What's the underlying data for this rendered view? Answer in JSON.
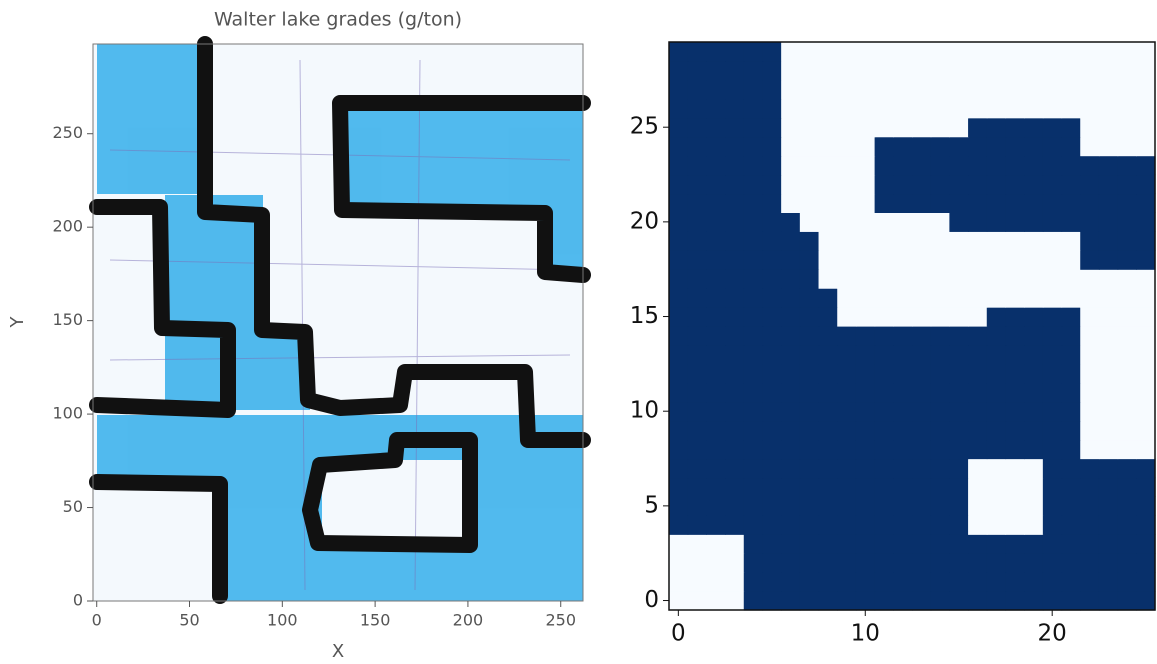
{
  "chart_data": [
    {
      "type": "map",
      "title": "Walter lake grades (g/ton)",
      "x_label": "X",
      "y_label": "Y",
      "xlim": [
        -2,
        262
      ],
      "ylim": [
        0,
        298
      ],
      "xticks": [
        0,
        50,
        100,
        150,
        200,
        250
      ],
      "yticks": [
        0,
        50,
        100,
        150,
        200,
        250
      ]
    },
    {
      "type": "heatmap",
      "colors": [
        "#f7fbff",
        "#08306b"
      ],
      "xlim": [
        -0.5,
        25.5
      ],
      "ylim": [
        -0.5,
        29.5
      ],
      "xticks": [
        0,
        10,
        20
      ],
      "yticks": [
        0,
        5,
        10,
        15,
        20,
        25
      ],
      "z": [
        [
          0,
          0,
          0,
          0,
          1,
          1,
          1,
          1,
          1,
          1,
          1,
          1,
          1,
          1,
          1,
          1,
          1,
          1,
          1,
          1,
          1,
          1,
          1,
          1,
          1,
          1
        ],
        [
          0,
          0,
          0,
          0,
          1,
          1,
          1,
          1,
          1,
          1,
          1,
          1,
          1,
          1,
          1,
          1,
          1,
          1,
          1,
          1,
          1,
          1,
          1,
          1,
          1,
          1
        ],
        [
          0,
          0,
          0,
          0,
          1,
          1,
          1,
          1,
          1,
          1,
          1,
          1,
          1,
          1,
          1,
          1,
          1,
          1,
          1,
          1,
          1,
          1,
          1,
          1,
          1,
          1
        ],
        [
          0,
          0,
          0,
          0,
          1,
          1,
          1,
          1,
          1,
          1,
          1,
          1,
          1,
          1,
          1,
          1,
          1,
          1,
          1,
          1,
          1,
          1,
          1,
          1,
          1,
          1
        ],
        [
          1,
          1,
          1,
          1,
          1,
          1,
          1,
          1,
          1,
          1,
          1,
          1,
          1,
          1,
          1,
          1,
          0,
          0,
          0,
          0,
          1,
          1,
          1,
          1,
          1,
          1
        ],
        [
          1,
          1,
          1,
          1,
          1,
          1,
          1,
          1,
          1,
          1,
          1,
          1,
          1,
          1,
          1,
          1,
          0,
          0,
          0,
          0,
          1,
          1,
          1,
          1,
          1,
          1
        ],
        [
          1,
          1,
          1,
          1,
          1,
          1,
          1,
          1,
          1,
          1,
          1,
          1,
          1,
          1,
          1,
          1,
          0,
          0,
          0,
          0,
          1,
          1,
          1,
          1,
          1,
          1
        ],
        [
          1,
          1,
          1,
          1,
          1,
          1,
          1,
          1,
          1,
          1,
          1,
          1,
          1,
          1,
          1,
          1,
          0,
          0,
          0,
          0,
          1,
          1,
          1,
          1,
          1,
          1
        ],
        [
          1,
          1,
          1,
          1,
          1,
          1,
          1,
          1,
          1,
          1,
          1,
          1,
          1,
          1,
          1,
          1,
          1,
          1,
          1,
          1,
          1,
          1,
          0,
          0,
          0,
          0
        ],
        [
          1,
          1,
          1,
          1,
          1,
          1,
          1,
          1,
          1,
          1,
          1,
          1,
          1,
          1,
          1,
          1,
          1,
          1,
          1,
          1,
          1,
          1,
          0,
          0,
          0,
          0
        ],
        [
          1,
          1,
          1,
          1,
          1,
          1,
          1,
          1,
          1,
          1,
          1,
          1,
          1,
          1,
          1,
          1,
          1,
          1,
          1,
          1,
          1,
          1,
          0,
          0,
          0,
          0
        ],
        [
          1,
          1,
          1,
          1,
          1,
          1,
          1,
          1,
          1,
          1,
          1,
          1,
          1,
          1,
          1,
          1,
          1,
          1,
          1,
          1,
          1,
          1,
          0,
          0,
          0,
          0
        ],
        [
          1,
          1,
          1,
          1,
          1,
          1,
          1,
          1,
          1,
          1,
          1,
          1,
          1,
          1,
          1,
          1,
          1,
          1,
          1,
          1,
          1,
          1,
          0,
          0,
          0,
          0
        ],
        [
          1,
          1,
          1,
          1,
          1,
          1,
          1,
          1,
          1,
          1,
          1,
          1,
          1,
          1,
          1,
          1,
          1,
          1,
          1,
          1,
          1,
          1,
          0,
          0,
          0,
          0
        ],
        [
          1,
          1,
          1,
          1,
          1,
          1,
          1,
          1,
          1,
          1,
          1,
          1,
          1,
          1,
          1,
          1,
          1,
          1,
          1,
          1,
          1,
          1,
          0,
          0,
          0,
          0
        ],
        [
          1,
          1,
          1,
          1,
          1,
          1,
          1,
          1,
          1,
          0,
          0,
          0,
          0,
          0,
          0,
          0,
          0,
          1,
          1,
          1,
          1,
          1,
          0,
          0,
          0,
          0
        ],
        [
          1,
          1,
          1,
          1,
          1,
          1,
          1,
          1,
          1,
          0,
          0,
          0,
          0,
          0,
          0,
          0,
          0,
          0,
          0,
          0,
          0,
          0,
          0,
          0,
          0,
          0
        ],
        [
          1,
          1,
          1,
          1,
          1,
          1,
          1,
          1,
          0,
          0,
          0,
          0,
          0,
          0,
          0,
          0,
          0,
          0,
          0,
          0,
          0,
          0,
          0,
          0,
          0,
          0
        ],
        [
          1,
          1,
          1,
          1,
          1,
          1,
          1,
          1,
          0,
          0,
          0,
          0,
          0,
          0,
          0,
          0,
          0,
          0,
          0,
          0,
          0,
          0,
          1,
          1,
          1,
          1
        ],
        [
          1,
          1,
          1,
          1,
          1,
          1,
          1,
          1,
          0,
          0,
          0,
          0,
          0,
          0,
          0,
          0,
          0,
          0,
          0,
          0,
          0,
          0,
          1,
          1,
          1,
          1
        ],
        [
          1,
          1,
          1,
          1,
          1,
          1,
          1,
          0,
          0,
          0,
          0,
          0,
          0,
          0,
          0,
          1,
          1,
          1,
          1,
          1,
          1,
          1,
          1,
          1,
          1,
          1
        ],
        [
          1,
          1,
          1,
          1,
          1,
          1,
          0,
          0,
          0,
          0,
          0,
          1,
          1,
          1,
          1,
          1,
          1,
          1,
          1,
          1,
          1,
          1,
          1,
          1,
          1,
          1
        ],
        [
          1,
          1,
          1,
          1,
          1,
          1,
          0,
          0,
          0,
          0,
          0,
          1,
          1,
          1,
          1,
          1,
          1,
          1,
          1,
          1,
          1,
          1,
          1,
          1,
          1,
          1
        ],
        [
          1,
          1,
          1,
          1,
          1,
          1,
          0,
          0,
          0,
          0,
          0,
          1,
          1,
          1,
          1,
          1,
          1,
          1,
          1,
          1,
          1,
          1,
          1,
          1,
          1,
          1
        ],
        [
          1,
          1,
          1,
          1,
          1,
          1,
          0,
          0,
          0,
          0,
          0,
          1,
          1,
          1,
          1,
          1,
          1,
          1,
          1,
          1,
          1,
          1,
          0,
          0,
          0,
          0
        ],
        [
          1,
          1,
          1,
          1,
          1,
          1,
          0,
          0,
          0,
          0,
          0,
          0,
          0,
          0,
          0,
          0,
          1,
          1,
          1,
          1,
          1,
          1,
          0,
          0,
          0,
          0
        ],
        [
          1,
          1,
          1,
          1,
          1,
          1,
          0,
          0,
          0,
          0,
          0,
          0,
          0,
          0,
          0,
          0,
          0,
          0,
          0,
          0,
          0,
          0,
          0,
          0,
          0,
          0
        ],
        [
          1,
          1,
          1,
          1,
          1,
          1,
          0,
          0,
          0,
          0,
          0,
          0,
          0,
          0,
          0,
          0,
          0,
          0,
          0,
          0,
          0,
          0,
          0,
          0,
          0,
          0
        ],
        [
          1,
          1,
          1,
          1,
          1,
          1,
          0,
          0,
          0,
          0,
          0,
          0,
          0,
          0,
          0,
          0,
          0,
          0,
          0,
          0,
          0,
          0,
          0,
          0,
          0,
          0
        ],
        [
          1,
          1,
          1,
          1,
          1,
          1,
          0,
          0,
          0,
          0,
          0,
          0,
          0,
          0,
          0,
          0,
          0,
          0,
          0,
          0,
          0,
          0,
          0,
          0,
          0,
          0
        ]
      ]
    }
  ]
}
